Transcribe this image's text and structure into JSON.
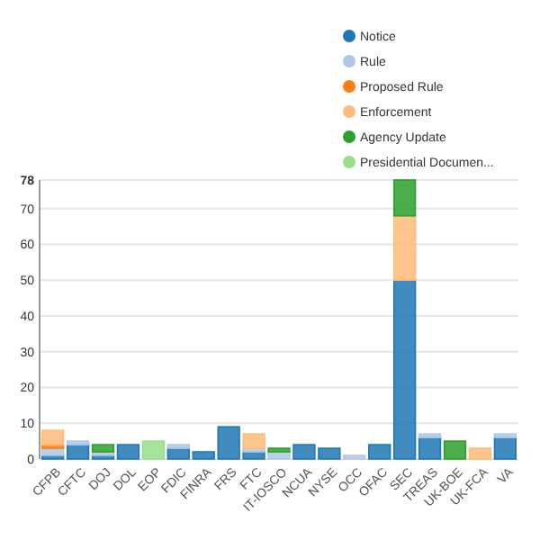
{
  "chart_data": {
    "type": "bar",
    "stacked": true,
    "categories": [
      "CFPB",
      "CFTC",
      "DOJ",
      "DOL",
      "EOP",
      "FDIC",
      "FINRA",
      "FRS",
      "FTC",
      "IT-IOSCO",
      "NCUA",
      "NYSE",
      "OCC",
      "OFAC",
      "SEC",
      "TREAS",
      "UK-BOE",
      "UK-FCA",
      "VA"
    ],
    "series": [
      {
        "name": "Notice",
        "color": "#1f77b4",
        "values": [
          1,
          4,
          1,
          4,
          0,
          3,
          2,
          9,
          2,
          0,
          4,
          3,
          0,
          4,
          50,
          6,
          0,
          0,
          6
        ]
      },
      {
        "name": "Rule",
        "color": "#aec7e8",
        "values": [
          2,
          1,
          1,
          0,
          0,
          1,
          0,
          0,
          1,
          2,
          0,
          0,
          1,
          0,
          0,
          1,
          0,
          0,
          1
        ]
      },
      {
        "name": "Proposed Rule",
        "color": "#ff7f0e",
        "values": [
          1,
          0,
          0,
          0,
          0,
          0,
          0,
          0,
          0,
          0,
          0,
          0,
          0,
          0,
          0,
          0,
          0,
          0,
          0
        ]
      },
      {
        "name": "Enforcement",
        "color": "#ffbb78",
        "values": [
          4,
          0,
          0,
          0,
          0,
          0,
          0,
          0,
          4,
          0,
          0,
          0,
          0,
          0,
          18,
          0,
          0,
          3,
          0
        ]
      },
      {
        "name": "Agency Update",
        "color": "#2ca02c",
        "values": [
          0,
          0,
          2,
          0,
          0,
          0,
          0,
          0,
          0,
          1,
          0,
          0,
          0,
          0,
          10,
          0,
          5,
          0,
          0
        ]
      },
      {
        "name": "Presidential Documen...",
        "color": "#98df8a",
        "values": [
          0,
          0,
          0,
          0,
          5,
          0,
          0,
          0,
          0,
          0,
          0,
          0,
          0,
          0,
          0,
          0,
          0,
          0,
          0
        ]
      }
    ],
    "ylim": [
      0,
      78
    ],
    "yticks": [
      0,
      10,
      20,
      30,
      40,
      50,
      60,
      70,
      78
    ],
    "grid": "y",
    "legend": "top right"
  }
}
